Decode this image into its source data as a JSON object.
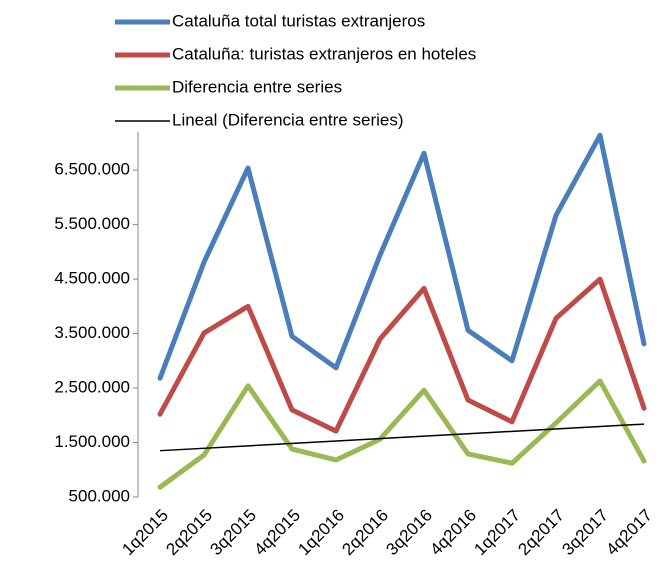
{
  "chart_data": {
    "type": "line",
    "categories": [
      "1q2015",
      "2q2015",
      "3q2015",
      "4q2015",
      "1q2016",
      "2q2016",
      "3q2016",
      "4q2016",
      "1q2017",
      "2q2017",
      "3q2017",
      "4q2017"
    ],
    "series": [
      {
        "name": "Cataluña total turistas extranjeros",
        "color": "#4a7ebb",
        "values": [
          2680000,
          4810000,
          6540000,
          3450000,
          2870000,
          4940000,
          6810000,
          3560000,
          3000000,
          5670000,
          7140000,
          3310000
        ]
      },
      {
        "name": "Cataluña: turistas extranjeros en hoteles",
        "color": "#be4b48",
        "values": [
          2020000,
          3510000,
          4000000,
          2100000,
          1710000,
          3400000,
          4330000,
          2280000,
          1880000,
          3780000,
          4500000,
          2130000
        ]
      },
      {
        "name": "Diferencia entre series",
        "color": "#98b954",
        "values": [
          680000,
          1270000,
          2540000,
          1380000,
          1180000,
          1560000,
          2460000,
          1290000,
          1120000,
          1860000,
          2630000,
          1160000
        ]
      },
      {
        "name": "Lineal (Diferencia entre series)",
        "color": "#000000",
        "trendline": "linear",
        "source": 2
      }
    ],
    "ylim": [
      500000,
      7200000
    ],
    "yticks": [
      {
        "value": 500000,
        "label": "500.000"
      },
      {
        "value": 1500000,
        "label": "1.500.000"
      },
      {
        "value": 2500000,
        "label": "2.500.000"
      },
      {
        "value": 3500000,
        "label": "3.500.000"
      },
      {
        "value": 4500000,
        "label": "4.500.000"
      },
      {
        "value": 5500000,
        "label": "5.500.000"
      },
      {
        "value": 6500000,
        "label": "6.500.000"
      }
    ],
    "legend": "top"
  }
}
